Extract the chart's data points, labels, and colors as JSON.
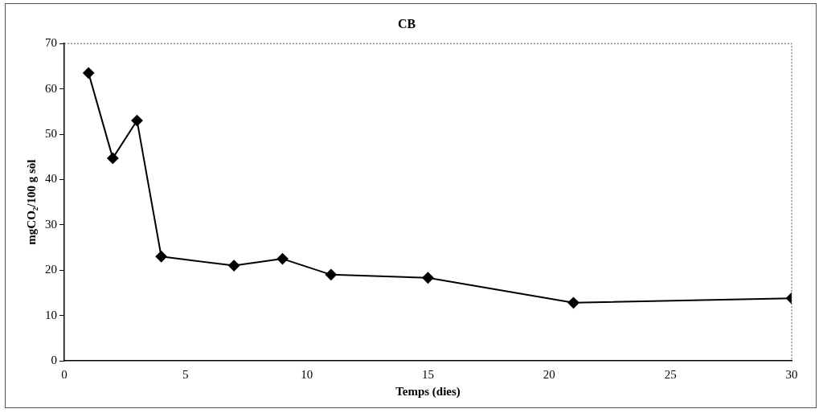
{
  "chart_data": {
    "type": "line",
    "title": "CB",
    "xlabel": "Temps (dies)",
    "ylabel": "mgCO₂/100 g sòl",
    "x": [
      1,
      2,
      3,
      4,
      7,
      9,
      11,
      15,
      21,
      30
    ],
    "series": [
      {
        "color": "#000000",
        "values": [
          63.5,
          44.7,
          53,
          23,
          21,
          22.5,
          19,
          18.3,
          12.8,
          13.8
        ]
      }
    ],
    "xlim": [
      0,
      30
    ],
    "xticks": [
      0,
      5,
      10,
      15,
      20,
      25,
      30
    ],
    "ylim": [
      0,
      70
    ],
    "yticks": [
      0,
      10,
      20,
      30,
      40,
      50,
      60,
      70
    ],
    "grid": false,
    "legend": false,
    "marker": "diamond",
    "line_style": "solid"
  }
}
